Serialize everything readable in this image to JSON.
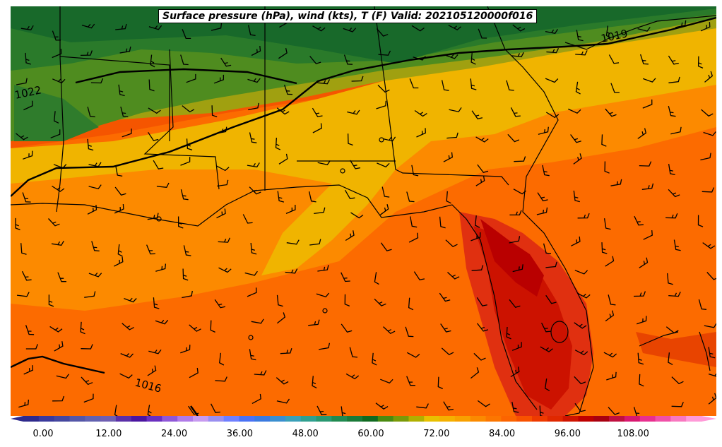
{
  "title": "Surface pressure (hPa), wind (kts), T (F) Valid: 202105120000f016",
  "isobar_labels": [
    "1022",
    "1019",
    "1016"
  ],
  "colorbar": {
    "ticks": [
      "0.00",
      "12.00",
      "24.00",
      "36.00",
      "48.00",
      "60.00",
      "72.00",
      "84.00",
      "96.00",
      "108.00"
    ],
    "colors": [
      "#2e2a8c",
      "#3a3a9c",
      "#45479f",
      "#5457a8",
      "#6262b0",
      "#6f5fb2",
      "#5a2fa8",
      "#4a15a0",
      "#6a2fc0",
      "#8f58d8",
      "#b07be8",
      "#c79bf0",
      "#9a8ff0",
      "#6f80ff",
      "#4a72f5",
      "#3a7ae0",
      "#3a8fd0",
      "#3aa0b8",
      "#30a090",
      "#289870",
      "#208a50",
      "#1a7a38",
      "#106a20",
      "#4a8a10",
      "#7a9a08",
      "#b0b000",
      "#e8c000",
      "#f5b000",
      "#f8a000",
      "#fb8a00",
      "#fc7600",
      "#fc6400",
      "#f85200",
      "#ee3a00",
      "#e02800",
      "#cf1400",
      "#be0000",
      "#a80010",
      "#c01040",
      "#d81870",
      "#e83090",
      "#f050a8",
      "#f878c0",
      "#ff9ad8"
    ]
  }
}
